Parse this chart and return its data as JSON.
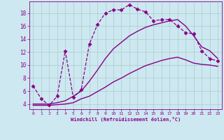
{
  "xlabel": "Windchill (Refroidissement éolien,°C)",
  "background_color": "#cde8f0",
  "line_color": "#880088",
  "grid_color": "#aacccc",
  "x_ticks": [
    0,
    1,
    2,
    3,
    4,
    5,
    6,
    7,
    8,
    9,
    10,
    11,
    12,
    13,
    14,
    15,
    16,
    17,
    18,
    19,
    20,
    21,
    22,
    23
  ],
  "y_ticks": [
    4,
    6,
    8,
    10,
    12,
    14,
    16,
    18
  ],
  "ylim": [
    3.2,
    19.8
  ],
  "xlim": [
    -0.5,
    23.5
  ],
  "series": [
    {
      "x": [
        0,
        1,
        2,
        3,
        4,
        5,
        6,
        7,
        8,
        9,
        10,
        11,
        12,
        13,
        14,
        15,
        16,
        17,
        18,
        19,
        20,
        21,
        22,
        23
      ],
      "y": [
        6.8,
        4.8,
        3.8,
        5.2,
        12.2,
        5.0,
        6.2,
        13.2,
        16.2,
        18.0,
        18.5,
        18.5,
        19.3,
        18.6,
        18.2,
        16.8,
        17.0,
        17.0,
        16.0,
        15.0,
        14.8,
        12.2,
        11.0,
        10.6
      ],
      "marker": "D",
      "markersize": 2.5,
      "linewidth": 0.9,
      "linestyle": "--"
    },
    {
      "x": [
        0,
        1,
        2,
        3,
        4,
        5,
        6,
        7,
        8,
        9,
        10,
        11,
        12,
        13,
        14,
        15,
        16,
        17,
        18,
        19,
        20,
        21,
        22,
        23
      ],
      "y": [
        4.0,
        4.0,
        4.0,
        4.2,
        4.5,
        5.2,
        6.0,
        7.5,
        9.2,
        11.0,
        12.5,
        13.5,
        14.5,
        15.2,
        15.8,
        16.2,
        16.5,
        16.8,
        17.0,
        16.0,
        14.5,
        12.8,
        12.2,
        11.0
      ],
      "marker": null,
      "markersize": 0,
      "linewidth": 1.0,
      "linestyle": "-"
    },
    {
      "x": [
        0,
        1,
        2,
        3,
        4,
        5,
        6,
        7,
        8,
        9,
        10,
        11,
        12,
        13,
        14,
        15,
        16,
        17,
        18,
        19,
        20,
        21,
        22,
        23
      ],
      "y": [
        3.8,
        3.8,
        3.8,
        3.9,
        4.0,
        4.2,
        4.8,
        5.2,
        5.9,
        6.6,
        7.4,
        8.0,
        8.7,
        9.3,
        9.9,
        10.3,
        10.7,
        11.0,
        11.2,
        10.8,
        10.3,
        10.1,
        10.0,
        9.8
      ],
      "marker": null,
      "markersize": 0,
      "linewidth": 1.0,
      "linestyle": "-"
    }
  ]
}
